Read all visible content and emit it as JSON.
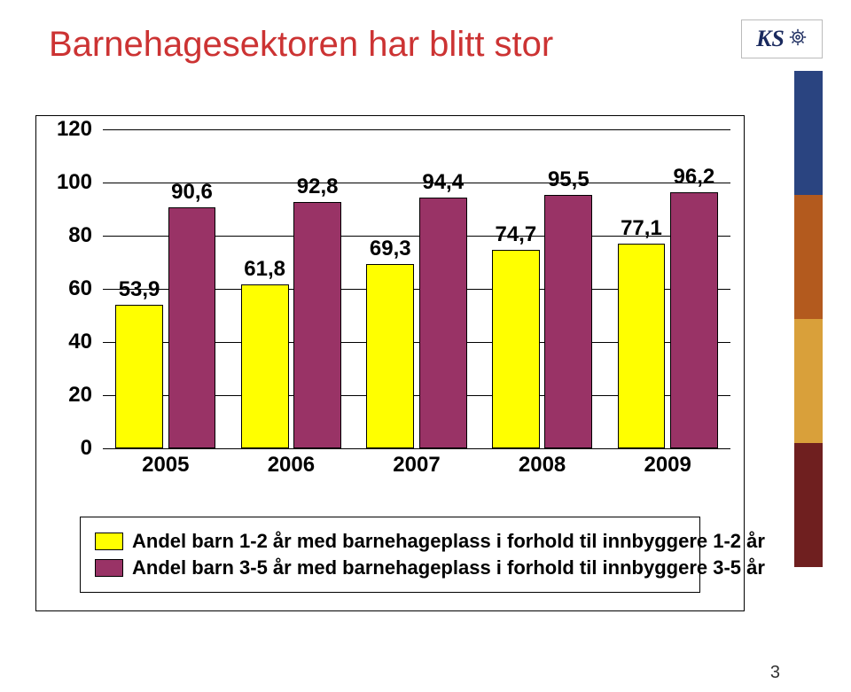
{
  "title": "Barnehagesektoren har blitt stor",
  "title_color": "#cc3333",
  "logo_text": "KS",
  "page_number": "3",
  "right_strip_colors": [
    "#2a4480",
    "#b35a1e",
    "#d9a03a",
    "#6f1f1f",
    "#ffffff"
  ],
  "chart": {
    "type": "grouped-bar",
    "ymax": 120,
    "ymin": 0,
    "ytick_step": 20,
    "yticks": [
      0,
      20,
      40,
      60,
      80,
      100,
      120
    ],
    "background": "#ffffff",
    "categories": [
      "2005",
      "2006",
      "2007",
      "2008",
      "2009"
    ],
    "series": [
      {
        "name": "Andel barn 1-2 år med barnehageplass i forhold til innbyggere 1-2 år",
        "color": "#ffff00",
        "values": [
          53.9,
          61.8,
          69.3,
          74.7,
          77.1
        ],
        "labels": [
          "53,9",
          "61,8",
          "69,3",
          "74,7",
          "77,1"
        ]
      },
      {
        "name": "Andel barn 3-5 år med barnehageplass i forhold til innbyggere 3-5 år",
        "color": "#993366",
        "values": [
          90.6,
          92.8,
          94.4,
          95.5,
          96.2
        ],
        "labels": [
          "90,6",
          "92,8",
          "94,4",
          "95,5",
          "96,2"
        ]
      }
    ],
    "axis_font_size": 24,
    "label_font_weight": "bold"
  }
}
